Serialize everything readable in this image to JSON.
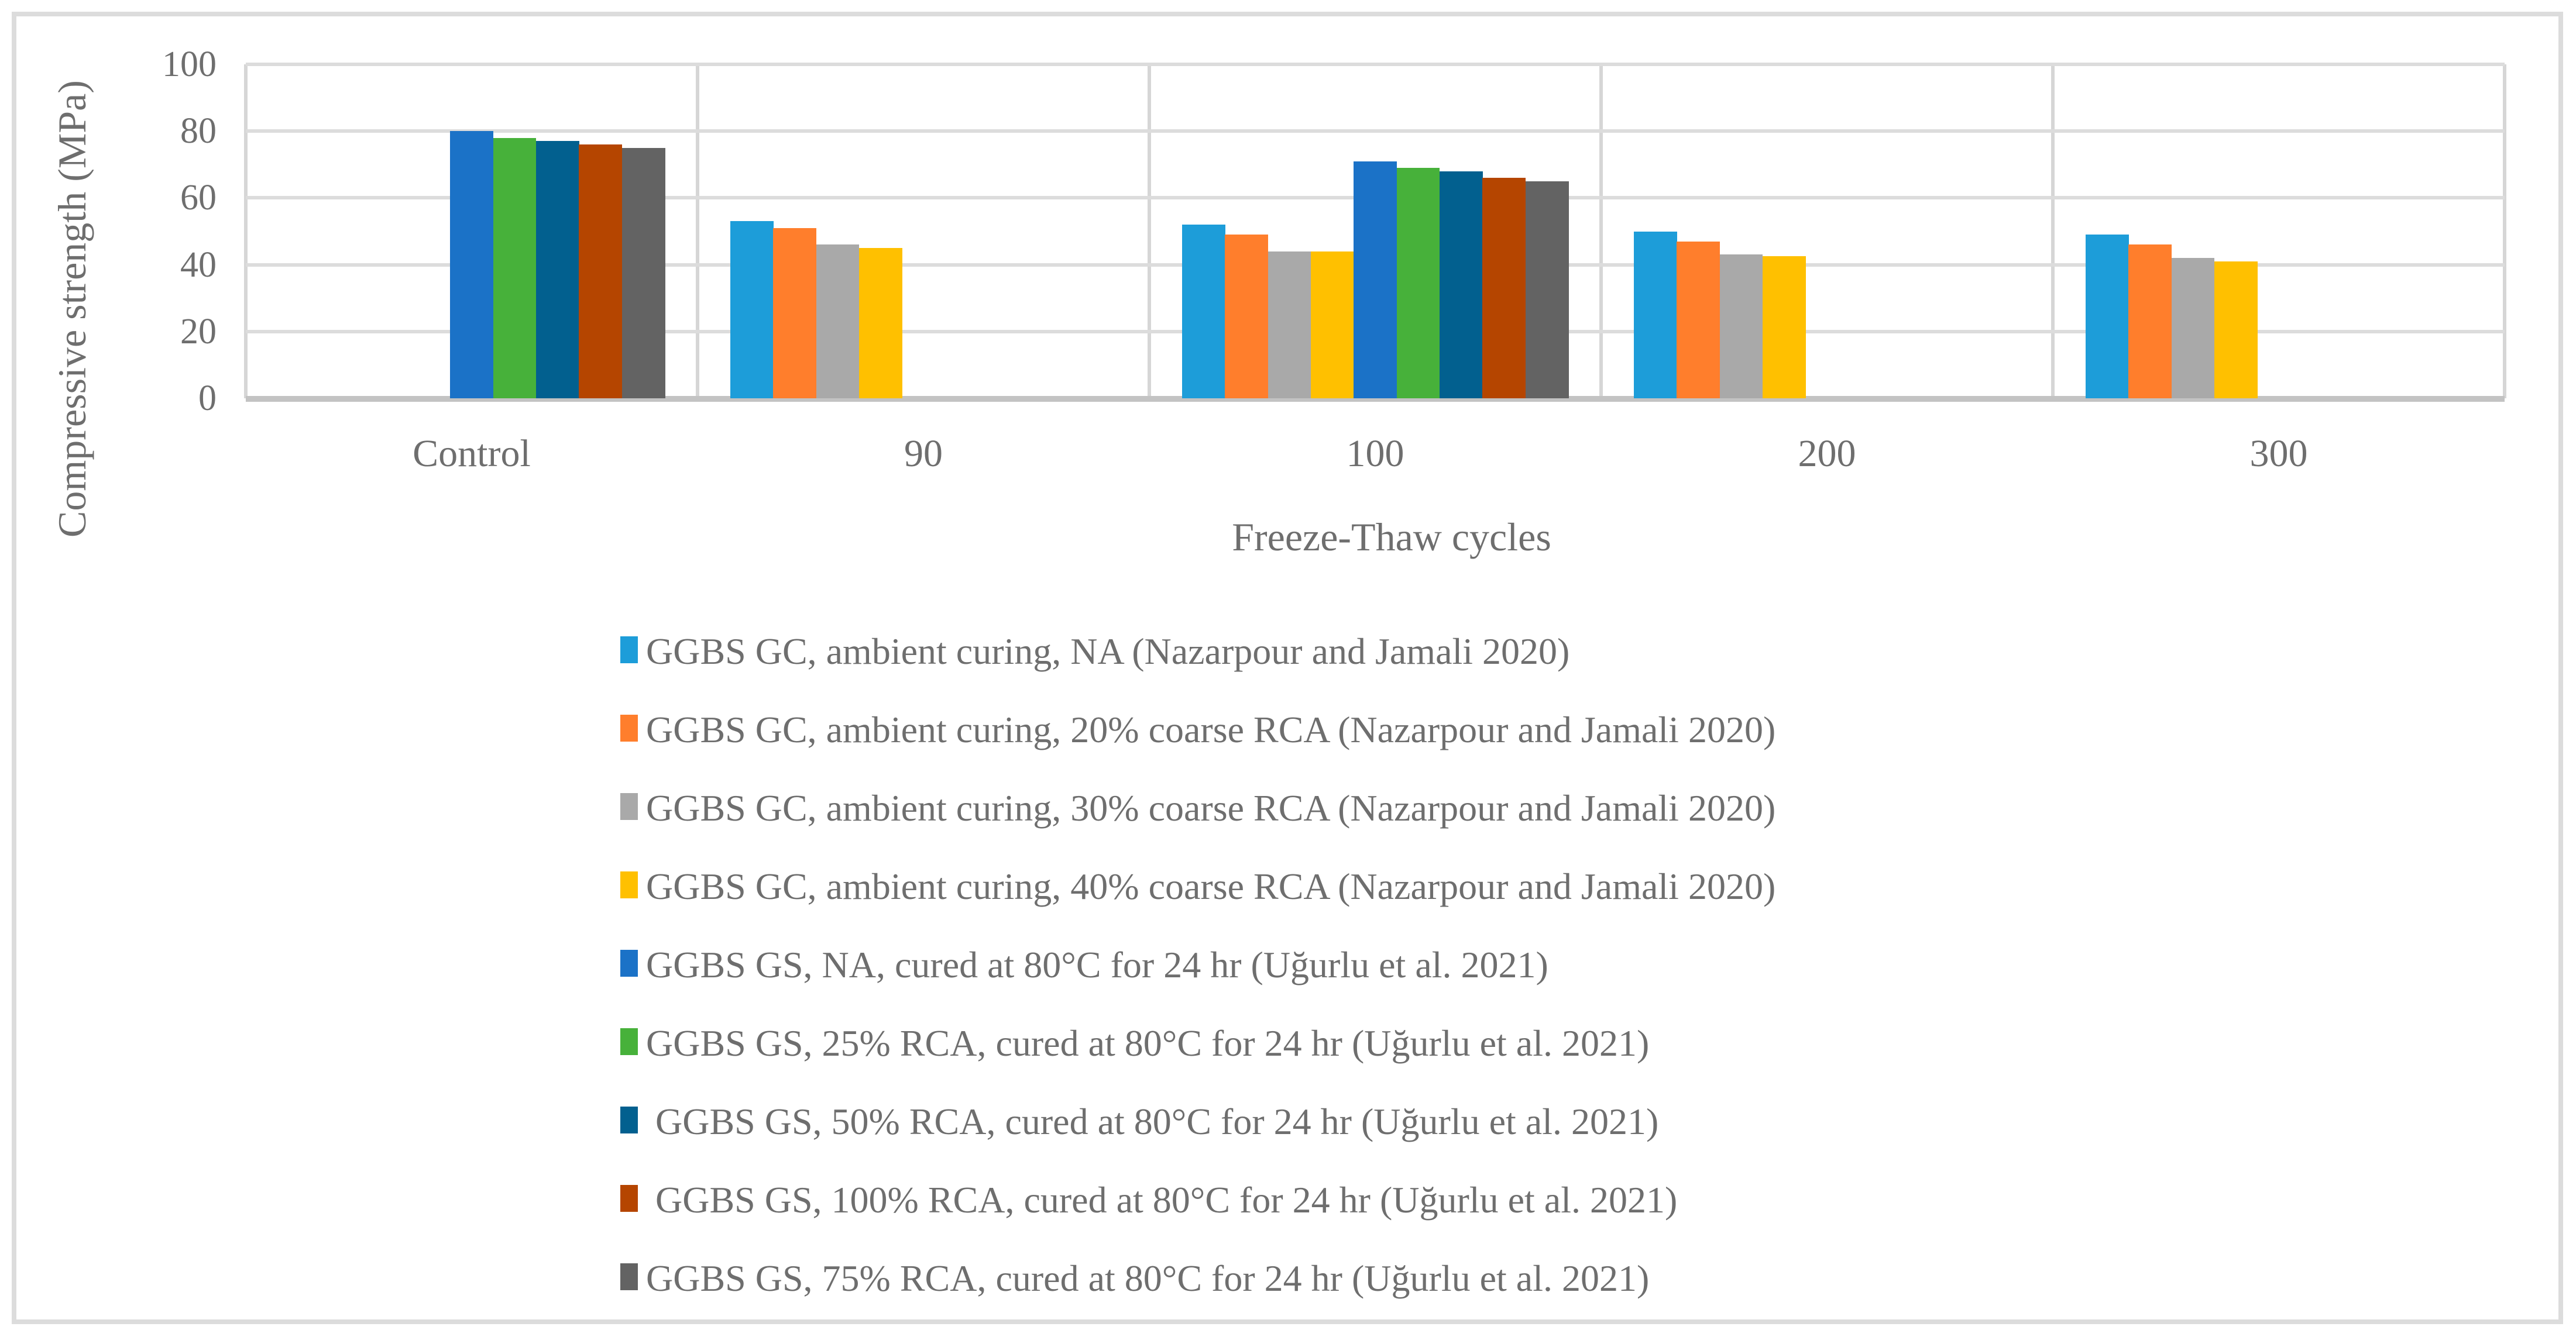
{
  "figure": {
    "background": "#ffffff",
    "border_color": "#dcdcdc",
    "text_color": "#6e6e6e",
    "gridline_color": "#dcdcdc",
    "axis_line_color": "#c3c3c3"
  },
  "y_axis": {
    "title": "Compressive strength (MPa)",
    "ticks": [
      "0",
      "20",
      "40",
      "60",
      "80",
      "100"
    ],
    "min": 0,
    "max": 100,
    "tick_step": 20
  },
  "x_axis": {
    "title": "Freeze-Thaw cycles",
    "categories": [
      "Control",
      "90",
      "100",
      "200",
      "300"
    ]
  },
  "chart_data": {
    "type": "bar",
    "title": "",
    "xlabel": "Freeze-Thaw cycles",
    "ylabel": "Compressive strength (MPa)",
    "ylim": [
      0,
      100
    ],
    "grid": true,
    "legend_position": "bottom",
    "categories": [
      "Control",
      "90",
      "100",
      "200",
      "300"
    ],
    "series": [
      {
        "name": "GGBS GC, ambient curing, NA (Nazarpour and Jamali 2020)",
        "color": "#1D9DD9",
        "values": [
          null,
          53,
          52,
          50,
          49
        ]
      },
      {
        "name": "GGBS GC, ambient curing, 20% coarse RCA (Nazarpour and Jamali 2020)",
        "color": "#FF7E2C",
        "values": [
          null,
          51,
          49,
          47,
          46
        ]
      },
      {
        "name": "GGBS GC, ambient curing, 30% coarse RCA (Nazarpour and Jamali 2020)",
        "color": "#A9A9A9",
        "values": [
          null,
          46,
          44,
          43,
          42
        ]
      },
      {
        "name": "GGBS GC, ambient curing, 40% coarse RCA (Nazarpour and Jamali 2020)",
        "color": "#FFC000",
        "values": [
          null,
          45,
          44,
          42.5,
          41
        ]
      },
      {
        "name": "GGBS GS, NA, cured at 80°C for 24 hr (Uğurlu et al. 2021)",
        "color": "#1B72C7",
        "values": [
          80,
          null,
          71,
          null,
          null
        ]
      },
      {
        "name": "GGBS GS, 25% RCA, cured at 80°C for 24 hr (Uğurlu et al. 2021)",
        "color": "#47B13A",
        "values": [
          78,
          null,
          69,
          null,
          null
        ]
      },
      {
        "name": " GGBS GS, 50% RCA, cured at 80°C for 24 hr (Uğurlu et al. 2021)",
        "color": "#02608F",
        "values": [
          77,
          null,
          68,
          null,
          null
        ]
      },
      {
        "name": " GGBS GS, 100% RCA, cured at 80°C for 24 hr (Uğurlu et al. 2021)",
        "color": "#B54500",
        "values": [
          76,
          null,
          66,
          null,
          null
        ]
      },
      {
        "name": "GGBS GS, 75% RCA, cured at 80°C for 24 hr (Uğurlu et al. 2021)",
        "color": "#636363",
        "values": [
          75,
          null,
          65,
          null,
          null
        ]
      }
    ]
  }
}
